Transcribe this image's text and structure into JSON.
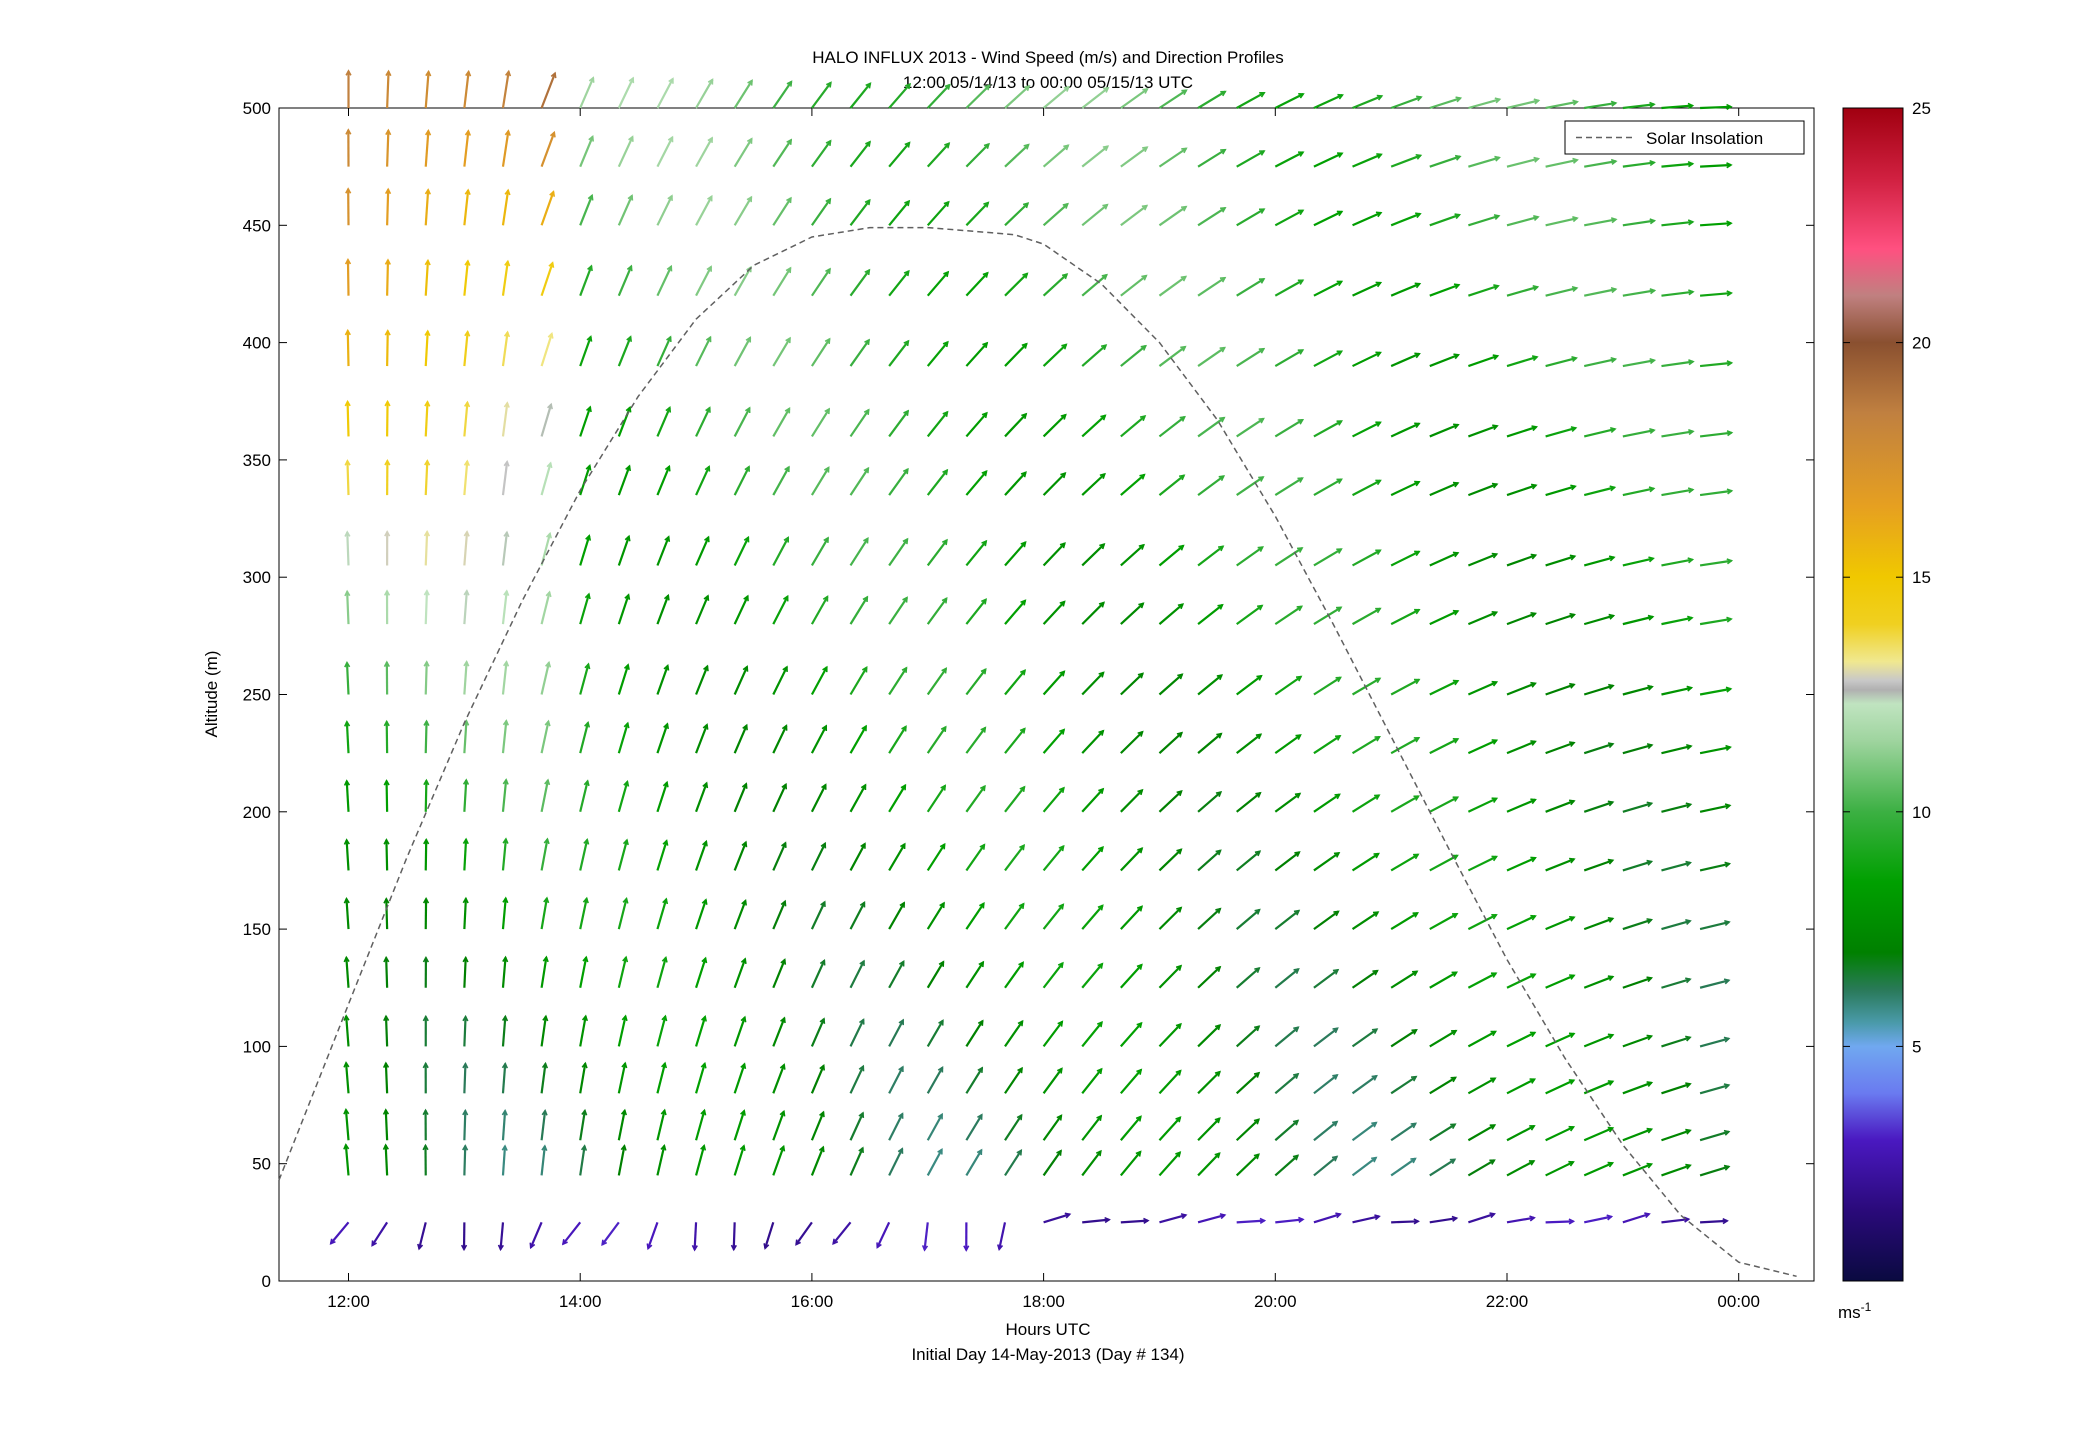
{
  "title_line1": "HALO INFLUX 2013 - Wind Speed (m/s) and Direction Profiles",
  "title_line2": "12:00 05/14/13 to 00:00 05/15/13  UTC",
  "xlabel": "Hours UTC",
  "ylabel": "Altitude (m)",
  "footer": "Initial Day 14-May-2013 (Day # 134)",
  "legend_label": "Solar Insolation",
  "colorbar_unit": "ms",
  "colorbar_unit_exp": "-1",
  "chart_data": {
    "type": "quiver",
    "title": "HALO INFLUX 2013 - Wind Speed (m/s) and Direction Profiles",
    "subtitle": "12:00 05/14/13 to 00:00 05/15/13  UTC",
    "xlabel": "Hours UTC",
    "ylabel": "Altitude (m)",
    "xlim_hours": [
      11.4,
      24.65
    ],
    "ylim": [
      0,
      500
    ],
    "x_ticks": [
      {
        "value": 12,
        "label": "12:00"
      },
      {
        "value": 14,
        "label": "14:00"
      },
      {
        "value": 16,
        "label": "16:00"
      },
      {
        "value": 18,
        "label": "18:00"
      },
      {
        "value": 20,
        "label": "20:00"
      },
      {
        "value": 22,
        "label": "22:00"
      },
      {
        "value": 24,
        "label": "00:00"
      }
    ],
    "y_ticks": [
      0,
      50,
      100,
      150,
      200,
      250,
      300,
      350,
      400,
      450,
      500
    ],
    "colorbar": {
      "label": "ms-1",
      "range": [
        0,
        25
      ],
      "ticks": [
        5,
        10,
        15,
        20,
        25
      ],
      "stops": [
        {
          "v": 0,
          "c": "#0a0a40"
        },
        {
          "v": 1.5,
          "c": "#2a0a7a"
        },
        {
          "v": 3,
          "c": "#4a18c0"
        },
        {
          "v": 4,
          "c": "#6a7af0"
        },
        {
          "v": 5,
          "c": "#70a8f0"
        },
        {
          "v": 5.5,
          "c": "#4a9aaa"
        },
        {
          "v": 6.2,
          "c": "#2a7a5a"
        },
        {
          "v": 7,
          "c": "#008000"
        },
        {
          "v": 8.5,
          "c": "#00a000"
        },
        {
          "v": 10,
          "c": "#3cb043"
        },
        {
          "v": 11.5,
          "c": "#9ed49e"
        },
        {
          "v": 12.3,
          "c": "#c0e4c0"
        },
        {
          "v": 12.6,
          "c": "#b0b0b0"
        },
        {
          "v": 12.8,
          "c": "#c8c8c8"
        },
        {
          "v": 13.2,
          "c": "#f0e890"
        },
        {
          "v": 14,
          "c": "#f0d020"
        },
        {
          "v": 15,
          "c": "#f0c800"
        },
        {
          "v": 16.5,
          "c": "#e6a020"
        },
        {
          "v": 18.5,
          "c": "#c08040"
        },
        {
          "v": 20,
          "c": "#8a5030"
        },
        {
          "v": 21,
          "c": "#c08080"
        },
        {
          "v": 22,
          "c": "#ff5080"
        },
        {
          "v": 23.5,
          "c": "#d02040"
        },
        {
          "v": 25,
          "c": "#a00010"
        }
      ]
    },
    "altitudes_m": [
      25,
      45,
      60,
      80,
      100,
      125,
      150,
      175,
      200,
      225,
      250,
      280,
      305,
      335,
      360,
      390,
      420,
      450,
      475,
      500
    ],
    "solar_insolation": {
      "name": "Solar Insolation",
      "style": "dashed",
      "color": "#606060",
      "x": [
        11.4,
        12.0,
        12.5,
        13.0,
        13.5,
        14.0,
        14.5,
        15.0,
        15.5,
        16.0,
        16.5,
        17.0,
        17.5,
        17.75,
        18.0,
        18.5,
        19.0,
        19.5,
        20.0,
        20.5,
        21.0,
        21.5,
        22.0,
        22.5,
        23.0,
        23.5,
        24.0,
        24.5
      ],
      "y": [
        43,
        118,
        180,
        238,
        290,
        337,
        377,
        410,
        433,
        445,
        449,
        449,
        447,
        446,
        442,
        425,
        400,
        367,
        326,
        280,
        232,
        184,
        137,
        95,
        58,
        28,
        8,
        2
      ]
    }
  }
}
